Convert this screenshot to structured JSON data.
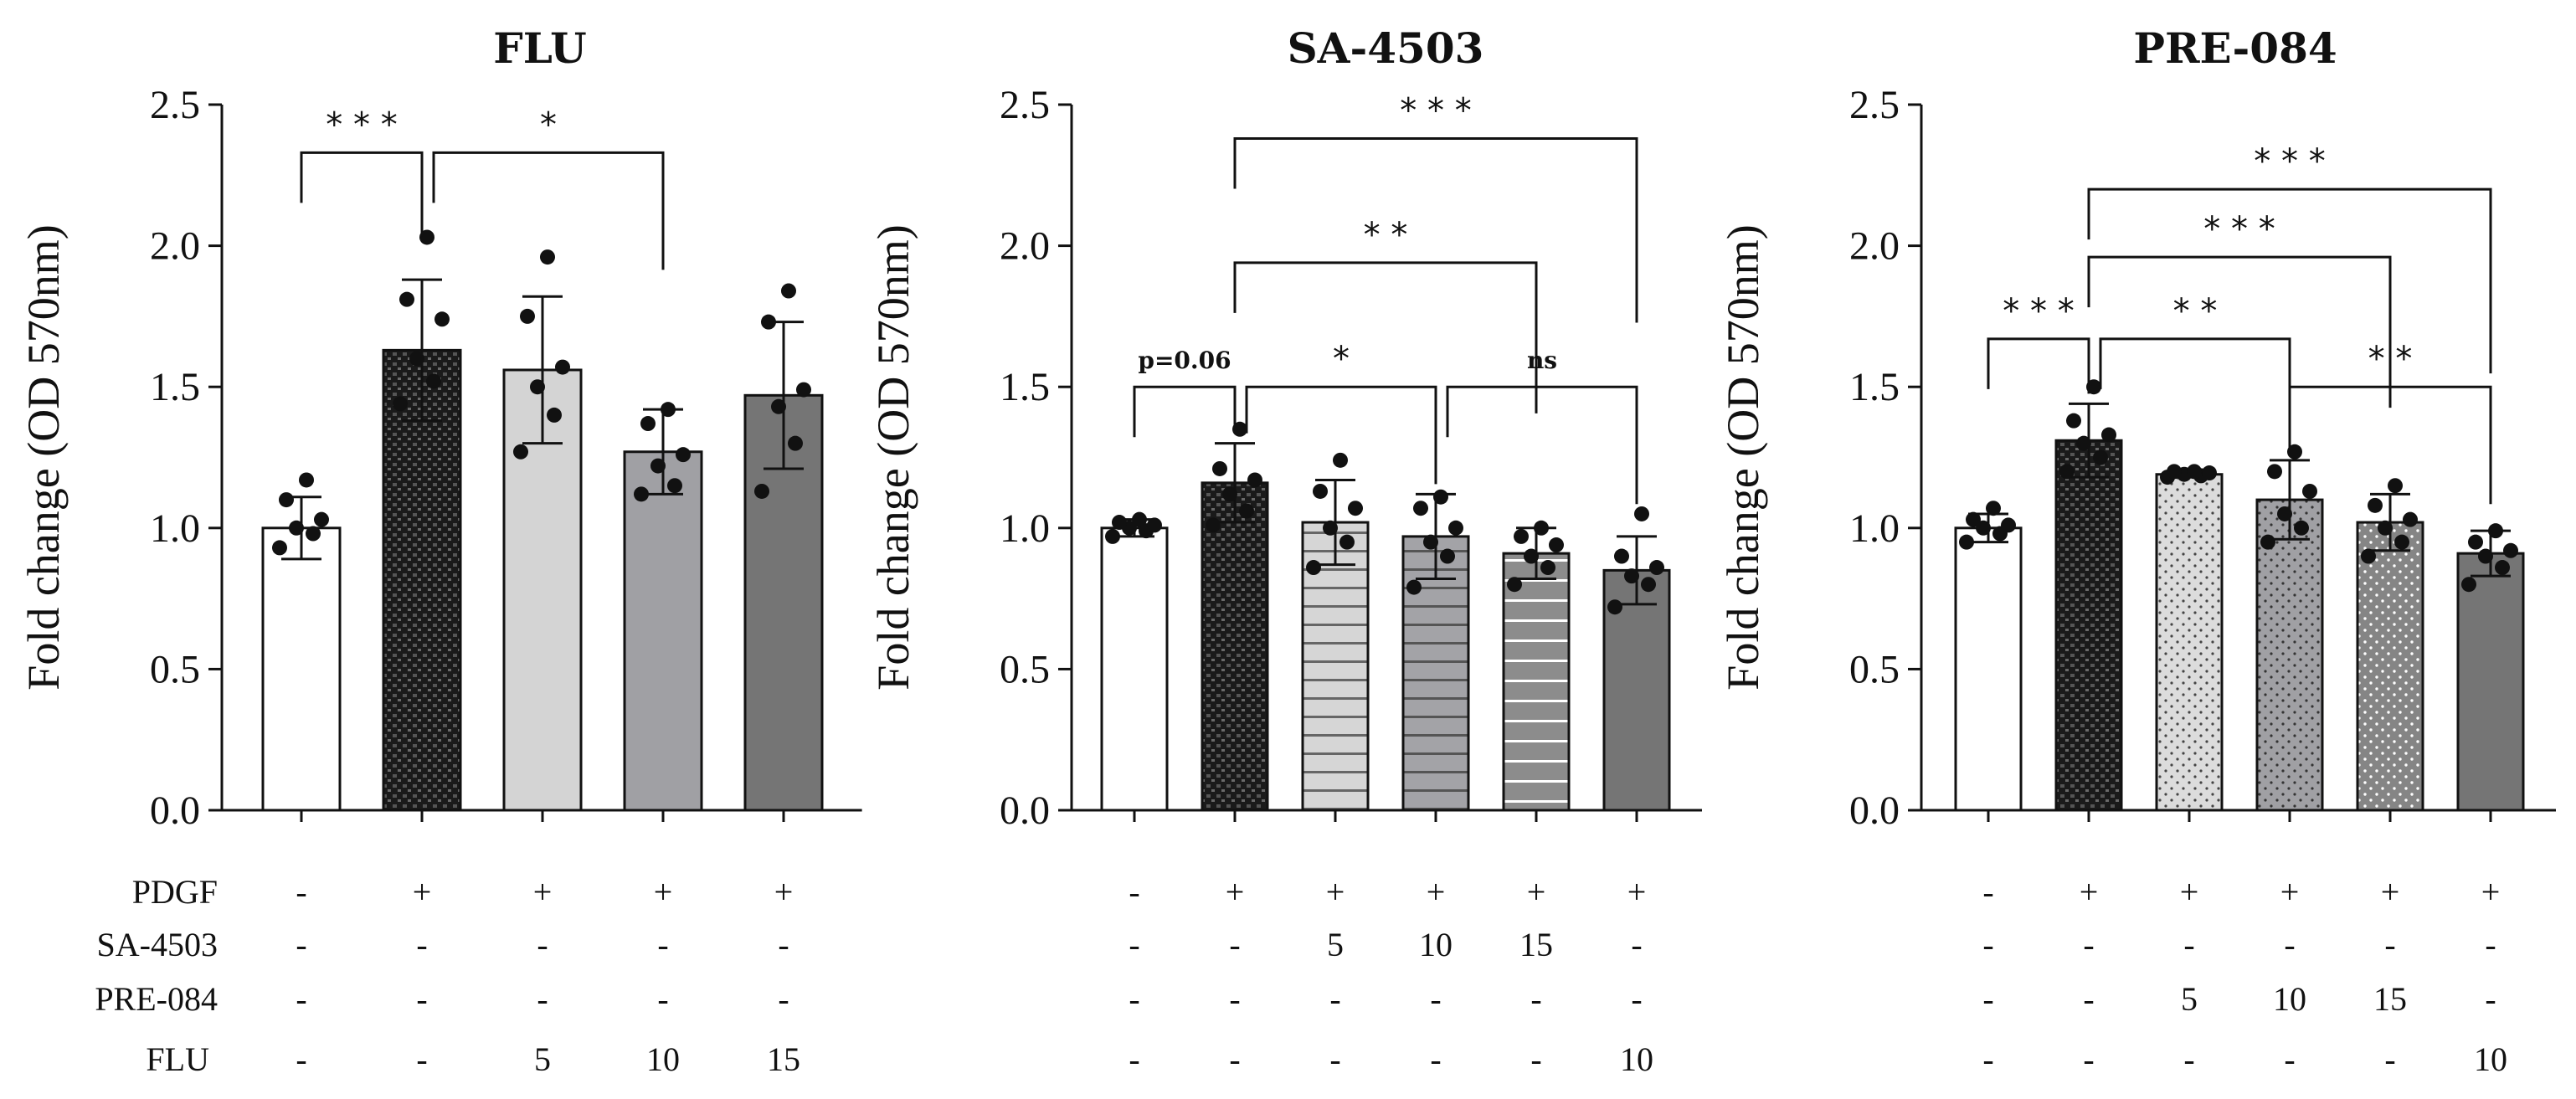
{
  "row_labels": [
    "PDGF",
    "SA-4503",
    "PRE-084",
    "FLU"
  ],
  "colors": {
    "ink": "#111111",
    "light": "#d4d4d4",
    "mid": "#a0a0a4",
    "dark": "#757575",
    "white": "#ffffff"
  },
  "chart_data": [
    {
      "type": "bar",
      "title": "FLU",
      "ylabel": "Fold change (OD 570nm)",
      "ylim": [
        0,
        2.5
      ],
      "yticks": [
        "0.0",
        "0.5",
        "1.0",
        "1.5",
        "2.0",
        "2.5"
      ],
      "bars": [
        {
          "mean": 1.0,
          "sd": 0.11,
          "fill": "white",
          "points": [
            0.93,
            0.98,
            1.0,
            1.03,
            1.1,
            1.17
          ]
        },
        {
          "mean": 1.63,
          "sd": 0.25,
          "fill": "checker",
          "points": [
            1.44,
            1.52,
            1.6,
            1.74,
            1.81,
            2.03
          ]
        },
        {
          "mean": 1.56,
          "sd": 0.26,
          "fill": "light",
          "points": [
            1.27,
            1.4,
            1.5,
            1.57,
            1.75,
            1.96
          ]
        },
        {
          "mean": 1.27,
          "sd": 0.15,
          "fill": "mid",
          "points": [
            1.12,
            1.15,
            1.22,
            1.26,
            1.37,
            1.42
          ]
        },
        {
          "mean": 1.47,
          "sd": 0.26,
          "fill": "dark",
          "points": [
            1.13,
            1.3,
            1.43,
            1.49,
            1.73,
            1.84
          ]
        }
      ],
      "conditions": [
        [
          "-",
          "+",
          "+",
          "+",
          "+"
        ],
        [
          "-",
          "-",
          "-",
          "-",
          "-"
        ],
        [
          "-",
          "-",
          "-",
          "-",
          "-"
        ],
        [
          "-",
          "-",
          "5",
          "10",
          "15"
        ]
      ],
      "brackets": [
        {
          "from": 0,
          "to": 1,
          "y": 2.33,
          "label": "* * *",
          "style": "normal"
        },
        {
          "from": 1,
          "to": 3,
          "y": 2.33,
          "label": "*",
          "style": "normal"
        }
      ]
    },
    {
      "type": "bar",
      "title": "SA-4503",
      "ylabel": "Fold change (OD 570nm)",
      "ylim": [
        0,
        2.5
      ],
      "yticks": [
        "0.0",
        "0.5",
        "1.0",
        "1.5",
        "2.0",
        "2.5"
      ],
      "bars": [
        {
          "mean": 1.0,
          "sd": 0.03,
          "fill": "white",
          "points": [
            0.97,
            0.99,
            1.0,
            1.01,
            1.02,
            1.03
          ]
        },
        {
          "mean": 1.16,
          "sd": 0.14,
          "fill": "checker",
          "points": [
            1.01,
            1.06,
            1.12,
            1.17,
            1.21,
            1.35
          ]
        },
        {
          "mean": 1.02,
          "sd": 0.15,
          "fill": "hlines-light",
          "points": [
            0.86,
            0.95,
            1.0,
            1.07,
            1.13,
            1.24
          ]
        },
        {
          "mean": 0.97,
          "sd": 0.15,
          "fill": "hlines-mid",
          "points": [
            0.79,
            0.9,
            0.95,
            1.0,
            1.07,
            1.11
          ]
        },
        {
          "mean": 0.91,
          "sd": 0.09,
          "fill": "hlines-white",
          "points": [
            0.8,
            0.86,
            0.9,
            0.94,
            0.97,
            1.0
          ]
        },
        {
          "mean": 0.85,
          "sd": 0.12,
          "fill": "dark",
          "points": [
            0.72,
            0.8,
            0.83,
            0.86,
            0.9,
            1.05
          ]
        }
      ],
      "conditions": [
        [
          "-",
          "+",
          "+",
          "+",
          "+",
          "+"
        ],
        [
          "-",
          "-",
          "5",
          "10",
          "15",
          "-"
        ],
        [
          "-",
          "-",
          "-",
          "-",
          "-",
          "-"
        ],
        [
          "-",
          "-",
          "-",
          "-",
          "-",
          "10"
        ]
      ],
      "brackets": [
        {
          "from": 1,
          "to": 5,
          "y": 2.38,
          "label": "* * *",
          "style": "normal"
        },
        {
          "from": 1,
          "to": 4,
          "y": 1.94,
          "label": "* *",
          "style": "normal"
        },
        {
          "from": 0,
          "to": 1,
          "y": 1.5,
          "label": "p=0.06",
          "style": "p"
        },
        {
          "from": 1,
          "to": 3,
          "y": 1.5,
          "label": "*",
          "style": "normal"
        },
        {
          "from": 3,
          "to": 5,
          "y": 1.5,
          "label": "ns",
          "style": "small"
        }
      ]
    },
    {
      "type": "bar",
      "title": "PRE-084",
      "ylabel": "Fold change (OD 570nm)",
      "ylim": [
        0,
        2.5
      ],
      "yticks": [
        "0.0",
        "0.5",
        "1.0",
        "1.5",
        "2.0",
        "2.5"
      ],
      "bars": [
        {
          "mean": 1.0,
          "sd": 0.05,
          "fill": "white",
          "points": [
            0.95,
            0.98,
            1.0,
            1.01,
            1.03,
            1.07
          ]
        },
        {
          "mean": 1.31,
          "sd": 0.13,
          "fill": "checker",
          "points": [
            1.2,
            1.25,
            1.3,
            1.33,
            1.38,
            1.5
          ]
        },
        {
          "mean": 1.19,
          "sd": 0.01,
          "fill": "dots-light",
          "points": [
            1.18,
            1.185,
            1.19,
            1.195,
            1.2,
            1.2
          ]
        },
        {
          "mean": 1.1,
          "sd": 0.14,
          "fill": "dots-mid",
          "points": [
            0.95,
            1.0,
            1.05,
            1.13,
            1.2,
            1.27
          ]
        },
        {
          "mean": 1.02,
          "sd": 0.1,
          "fill": "dots-dark",
          "points": [
            0.9,
            0.95,
            1.0,
            1.03,
            1.08,
            1.15
          ]
        },
        {
          "mean": 0.91,
          "sd": 0.08,
          "fill": "dark",
          "points": [
            0.8,
            0.86,
            0.9,
            0.92,
            0.95,
            0.99
          ]
        }
      ],
      "conditions": [
        [
          "-",
          "+",
          "+",
          "+",
          "+",
          "+"
        ],
        [
          "-",
          "-",
          "-",
          "-",
          "-",
          "-"
        ],
        [
          "-",
          "-",
          "5",
          "10",
          "15",
          "-"
        ],
        [
          "-",
          "-",
          "-",
          "-",
          "-",
          "10"
        ]
      ],
      "brackets": [
        {
          "from": 1,
          "to": 5,
          "y": 2.2,
          "label": "* * *",
          "style": "normal"
        },
        {
          "from": 1,
          "to": 4,
          "y": 1.96,
          "label": "* * *",
          "style": "normal"
        },
        {
          "from": 0,
          "to": 1,
          "y": 1.67,
          "label": "* * *",
          "style": "normal"
        },
        {
          "from": 1,
          "to": 3,
          "y": 1.67,
          "label": "* *",
          "style": "normal"
        },
        {
          "from": 3,
          "to": 5,
          "y": 1.5,
          "label": "* *",
          "style": "normal"
        }
      ]
    }
  ]
}
